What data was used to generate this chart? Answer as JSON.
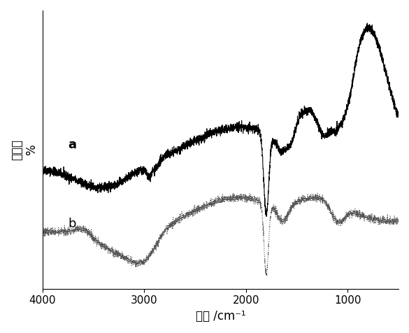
{
  "title": "",
  "xlabel": "波数 /cm⁻¹",
  "ylabel": "透过率\n%",
  "xlim": [
    4000,
    500
  ],
  "x_ticks": [
    4000,
    3000,
    2000,
    1000
  ],
  "label_a": "a",
  "label_b": "b",
  "curve_a_color": "#000000",
  "curve_b_color": "#555555",
  "background": "#ffffff",
  "figsize": [
    5.85,
    4.76
  ],
  "dpi": 100
}
